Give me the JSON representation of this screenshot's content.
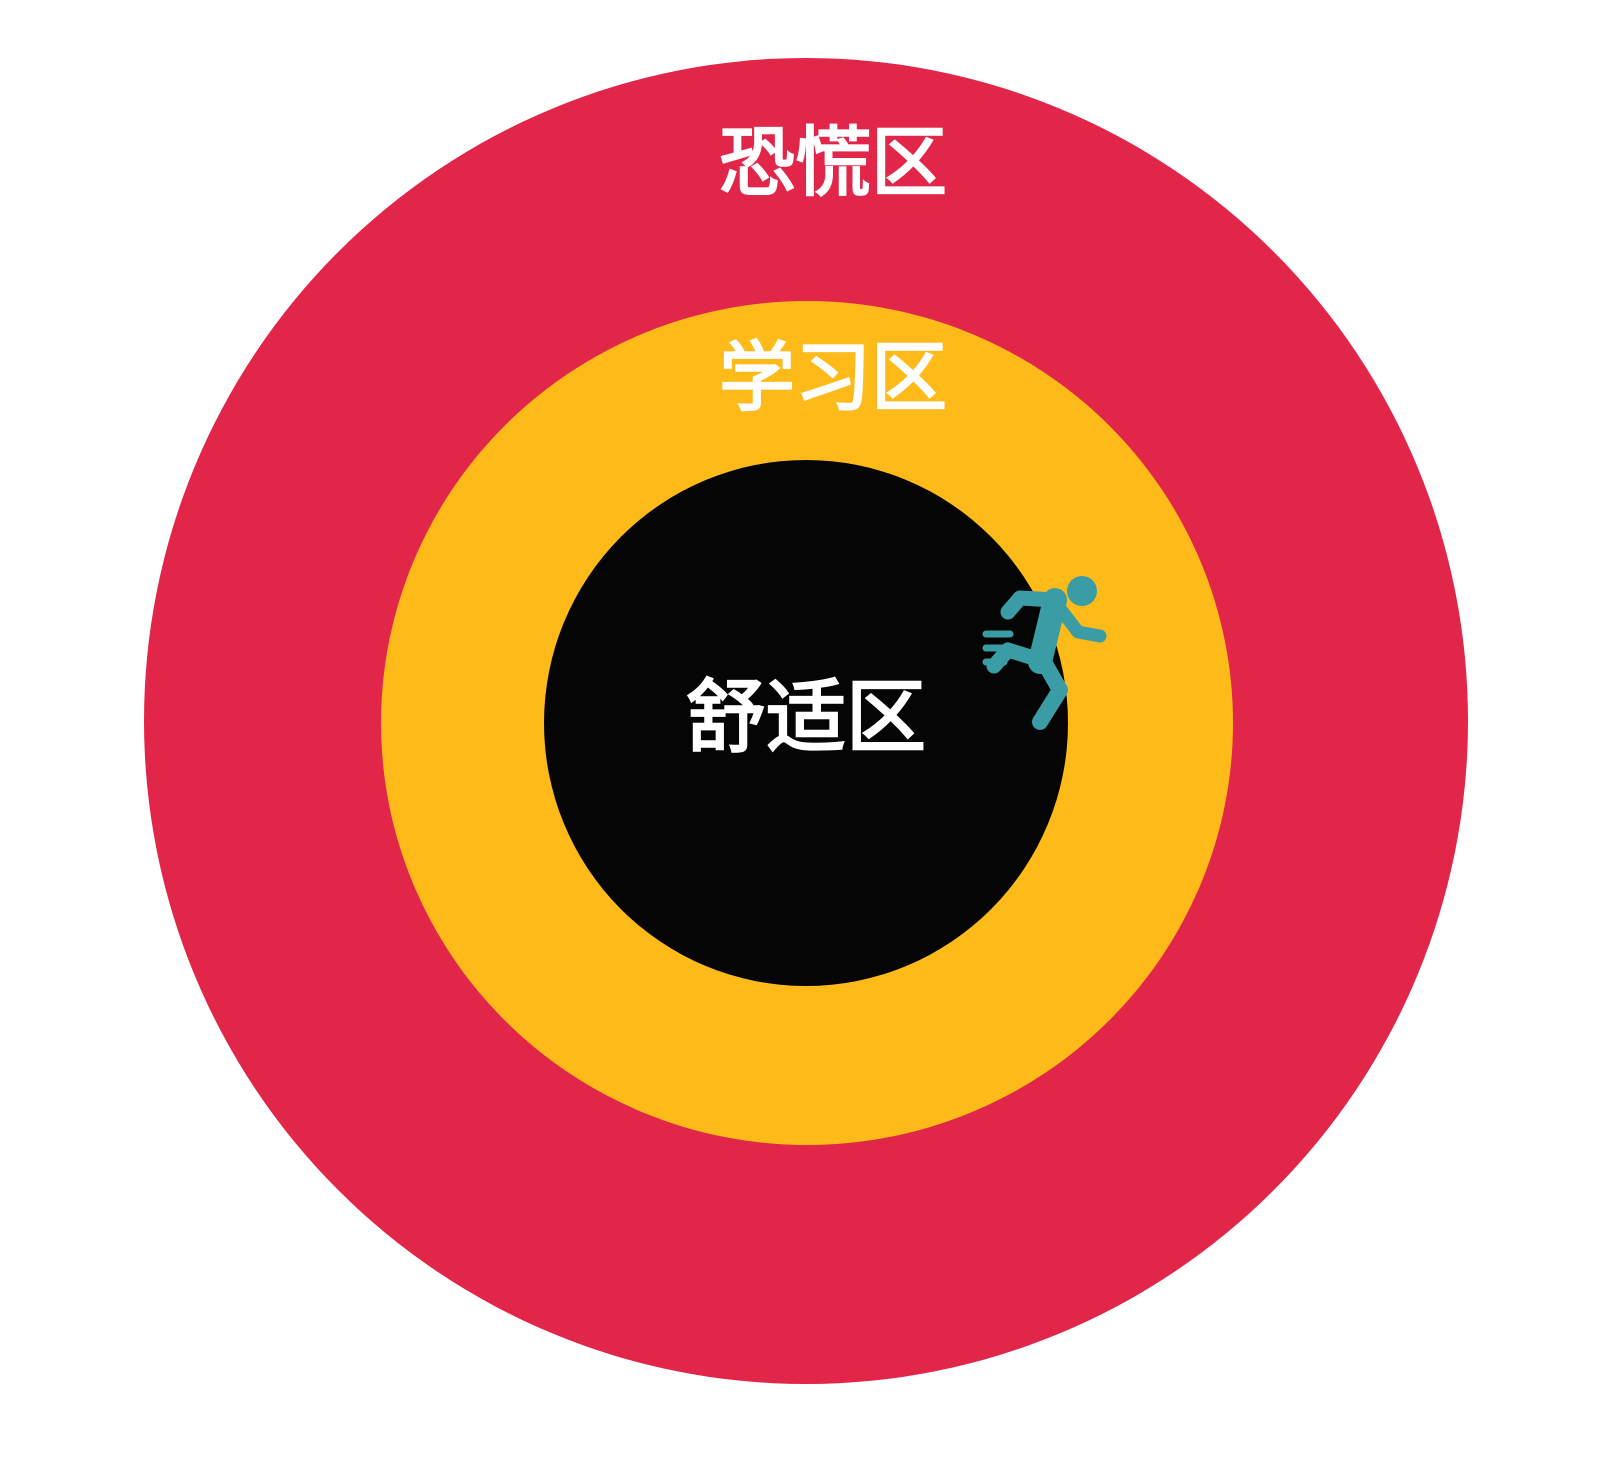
{
  "diagram": {
    "zones": {
      "panic": {
        "label": "恐慌区",
        "color": "#E1264A"
      },
      "learning": {
        "label": "学习区",
        "color": "#FDBA19"
      },
      "comfort": {
        "label": "舒适区",
        "color": "#050505"
      }
    },
    "runner": {
      "icon": "running-person-icon",
      "color": "#3A9DA6"
    },
    "label_color": "#FFFFFF"
  }
}
